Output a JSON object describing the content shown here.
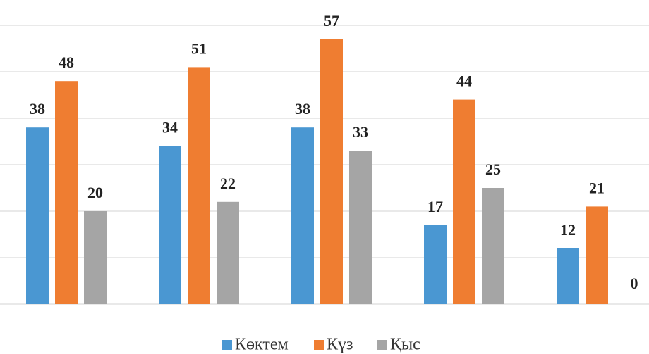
{
  "chart_data": {
    "type": "bar",
    "categories": [
      null,
      null,
      null,
      null,
      null
    ],
    "series": [
      {
        "name": "Көктем",
        "color": "#4a97d2",
        "values": [
          38,
          34,
          38,
          17,
          12
        ]
      },
      {
        "name": "Күз",
        "color": "#ef7d31",
        "values": [
          48,
          51,
          57,
          44,
          21
        ]
      },
      {
        "name": "Қыс",
        "color": "#a5a5a5",
        "values": [
          20,
          22,
          33,
          25,
          0
        ]
      }
    ],
    "ylim": [
      0,
      60
    ],
    "yticks": [
      0,
      10,
      20,
      30,
      40,
      50,
      60
    ],
    "grid": true,
    "legend": "bottom"
  }
}
